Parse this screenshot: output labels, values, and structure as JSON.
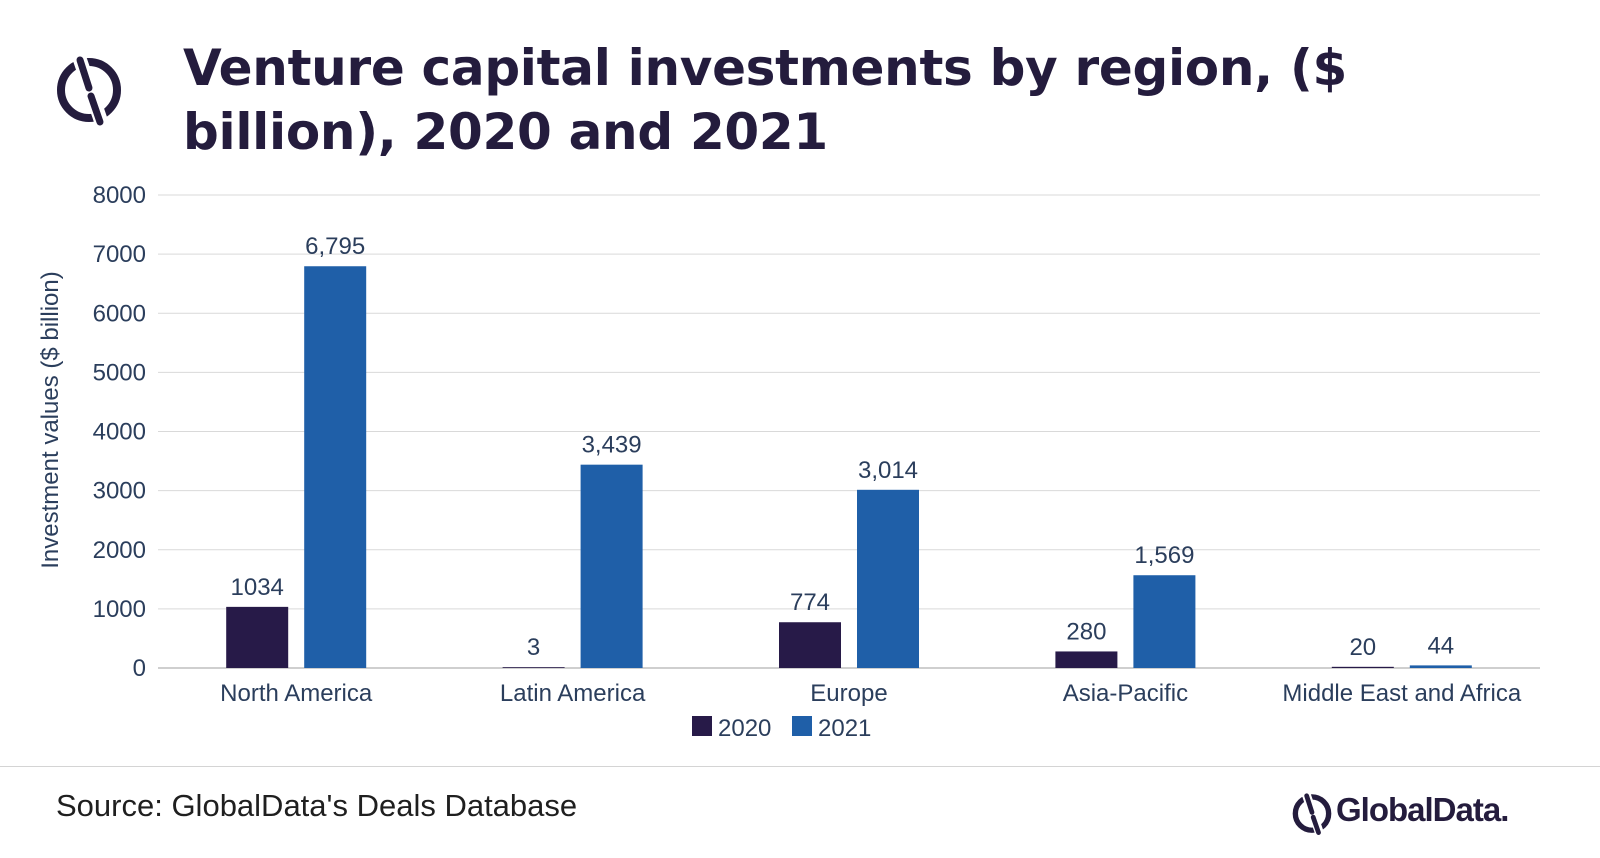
{
  "header": {
    "title": "Venture capital investments by region, ($ billion), 2020 and 2021"
  },
  "chart_data": {
    "type": "bar",
    "title": "Venture capital investments by region, ($ billion), 2020 and 2021",
    "xlabel": "",
    "ylabel": "Investment values ($ billion)",
    "ylim": [
      0,
      8000
    ],
    "yticks": [
      0,
      1000,
      2000,
      3000,
      4000,
      5000,
      6000,
      7000,
      8000
    ],
    "grid": true,
    "legend_position": "bottom-center",
    "categories": [
      "North America",
      "Latin America",
      "Europe",
      "Asia-Pacific",
      "Middle East and Africa"
    ],
    "series": [
      {
        "name": "2020",
        "color": "#271a48",
        "values": [
          1034,
          3,
          774,
          280,
          20
        ],
        "labels": [
          "1034",
          "3",
          "774",
          "280",
          "20"
        ]
      },
      {
        "name": "2021",
        "color": "#1f5fa8",
        "values": [
          6795,
          3439,
          3014,
          1569,
          44
        ],
        "labels": [
          "6,795",
          "3,439",
          "3,014",
          "1,569",
          "44"
        ]
      }
    ]
  },
  "footer": {
    "source": "Source: GlobalData's Deals Database",
    "brand": "GlobalData.",
    "brand_icon": "globaldata-logo-icon"
  },
  "colors": {
    "title": "#241c3d",
    "axis_text": "#2b3e5c",
    "grid": "#d9d9d9"
  }
}
